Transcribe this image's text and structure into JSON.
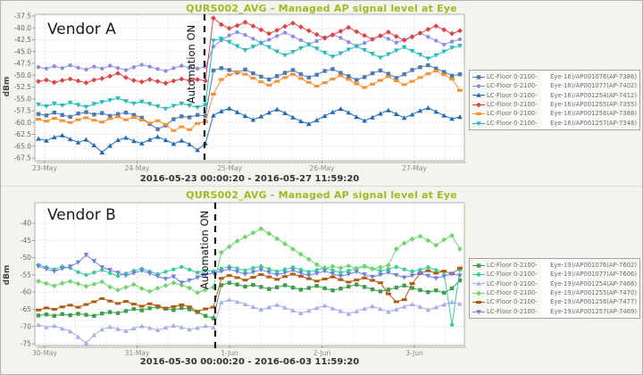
{
  "chart_data": [
    {
      "type": "line",
      "title": "QURS002_AVG - Managed AP signal level at Eye",
      "vendor": "Vendor A",
      "annotation": "Automation ON",
      "ylabel": "dBm",
      "xlabel": "2016-05-23 00:00:20 - 2016-05-27 11:59:20",
      "x_ticks": [
        "23-May",
        "24-May",
        "25-May",
        "26-May",
        "27-May"
      ],
      "y_ticks": [
        "-37.5",
        "-40.0",
        "-42.5",
        "-45.0",
        "-47.5",
        "-50.0",
        "-52.5",
        "-55.0",
        "-57.5",
        "-60.0",
        "-62.5",
        "-65.0",
        "-67.5"
      ],
      "ylim": [
        -68.5,
        -37.0
      ],
      "grid": true,
      "legend_position": "right",
      "automation_at_day": 1.73,
      "series": [
        {
          "label_left": "LC-Floor 0-2100-",
          "label_right": "Eye-16)/AP001076(AP-7386)",
          "color": "#4e79b2",
          "shape": "square",
          "values": [
            -58.2,
            -58.5,
            -57.9,
            -58.4,
            -58.8,
            -58.1,
            -57.8,
            -58.3,
            -58.0,
            -58.6,
            -58.2,
            -57.9,
            -58.4,
            -59.0,
            -60.3,
            -61.4,
            -60.6,
            -59.3,
            -58.7,
            -58.9,
            -58.4,
            -58.6,
            -49.0,
            -48.5,
            -48.9,
            -49.4,
            -48.8,
            -49.6,
            -50.3,
            -50.9,
            -50.2,
            -49.5,
            -48.9,
            -49.8,
            -50.5,
            -49.9,
            -49.1,
            -48.7,
            -49.5,
            -50.2,
            -51.0,
            -50.4,
            -49.6,
            -49.0,
            -49.7,
            -50.6,
            -49.8,
            -48.9,
            -48.3,
            -47.9,
            -48.6,
            -49.3,
            -50.1,
            -49.8
          ]
        },
        {
          "label_left": "LC-Floor 0-2100-",
          "label_right": "Eye-16)/AP001077(AP-7402)",
          "color": "#8b8fe0",
          "shape": "circle",
          "values": [
            -48.3,
            -48.6,
            -48.1,
            -48.5,
            -47.9,
            -48.4,
            -48.8,
            -48.2,
            -48.6,
            -48.0,
            -48.5,
            -48.9,
            -48.3,
            -47.8,
            -48.2,
            -48.7,
            -49.1,
            -48.5,
            -48.0,
            -48.4,
            -48.6,
            -48.2,
            -44.0,
            -42.6,
            -41.6,
            -40.9,
            -41.5,
            -42.3,
            -43.1,
            -42.5,
            -41.7,
            -41.0,
            -41.8,
            -42.6,
            -43.4,
            -42.8,
            -42.0,
            -41.4,
            -42.1,
            -43.0,
            -43.8,
            -43.2,
            -42.4,
            -41.6,
            -42.3,
            -43.1,
            -42.5,
            -41.8,
            -41.1,
            -41.9,
            -42.7,
            -43.5,
            -42.9,
            -42.4
          ]
        },
        {
          "label_left": "LC-Floor 0-2100-",
          "label_right": "Eye-16)/AP001254(AP-7412)",
          "color": "#1f6cb4",
          "shape": "triangle-up",
          "values": [
            -63.4,
            -63.8,
            -63.1,
            -62.7,
            -63.5,
            -64.2,
            -63.6,
            -64.8,
            -66.3,
            -64.9,
            -63.7,
            -63.2,
            -63.9,
            -64.4,
            -63.6,
            -63.0,
            -63.7,
            -64.5,
            -63.8,
            -64.6,
            -65.8,
            -64.4,
            -58.5,
            -57.6,
            -57.0,
            -57.8,
            -58.6,
            -59.4,
            -58.7,
            -57.9,
            -57.2,
            -58.0,
            -58.9,
            -59.7,
            -60.3,
            -59.5,
            -58.6,
            -57.8,
            -57.1,
            -57.9,
            -58.8,
            -59.6,
            -58.9,
            -58.1,
            -57.4,
            -58.2,
            -59.0,
            -58.3,
            -57.5,
            -56.9,
            -57.7,
            -58.5,
            -59.2,
            -58.8
          ]
        },
        {
          "label_left": "LC-Floor 0-2100-",
          "label_right": "Eye-16)/AP001255(AP-7355)",
          "color": "#e04345",
          "shape": "diamond",
          "values": [
            -51.3,
            -51.0,
            -51.5,
            -51.1,
            -50.8,
            -51.2,
            -51.6,
            -51.0,
            -50.7,
            -50.2,
            -49.6,
            -50.5,
            -51.1,
            -51.4,
            -50.9,
            -51.3,
            -51.7,
            -51.2,
            -50.8,
            -51.1,
            -50.9,
            -51.2,
            -37.9,
            -39.3,
            -40.1,
            -39.5,
            -38.8,
            -39.6,
            -40.4,
            -41.2,
            -40.5,
            -39.7,
            -39.0,
            -39.8,
            -40.6,
            -41.4,
            -42.2,
            -41.5,
            -40.7,
            -39.9,
            -40.8,
            -41.6,
            -42.4,
            -41.7,
            -40.9,
            -41.8,
            -42.6,
            -41.9,
            -41.1,
            -40.3,
            -39.6,
            -40.4,
            -41.2,
            -40.6
          ]
        },
        {
          "label_left": "LC-Floor 0-2100-",
          "label_right": "Eye-16)/AP001256(AP-7388)",
          "color": "#f79230",
          "shape": "hrect",
          "values": [
            -59.3,
            -59.7,
            -59.1,
            -59.6,
            -60.0,
            -59.4,
            -59.0,
            -59.5,
            -59.9,
            -59.2,
            -58.8,
            -59.4,
            -58.9,
            -59.5,
            -60.1,
            -59.6,
            -60.4,
            -61.7,
            -60.9,
            -61.5,
            -60.2,
            -59.8,
            -54.0,
            -50.9,
            -49.9,
            -49.3,
            -49.8,
            -50.6,
            -51.4,
            -52.1,
            -51.3,
            -50.5,
            -49.8,
            -50.7,
            -51.5,
            -52.3,
            -51.6,
            -50.8,
            -50.1,
            -50.9,
            -51.8,
            -52.6,
            -51.9,
            -51.1,
            -50.3,
            -51.2,
            -52.0,
            -51.3,
            -50.5,
            -49.7,
            -49.1,
            -49.9,
            -50.8,
            -53.2
          ]
        },
        {
          "label_left": "LC-Floor 0-2100-",
          "label_right": "Eye-16)/AP001257(AP-7348)",
          "color": "#1fbdb8",
          "shape": "triangle-down",
          "values": [
            -56.2,
            -56.6,
            -56.0,
            -56.4,
            -55.8,
            -56.3,
            -56.7,
            -56.1,
            -55.7,
            -55.3,
            -54.9,
            -55.5,
            -56.0,
            -55.6,
            -56.1,
            -56.6,
            -57.1,
            -56.5,
            -56.0,
            -56.4,
            -56.8,
            -56.3,
            -42.7,
            -42.3,
            -43.0,
            -43.9,
            -44.7,
            -44.0,
            -43.3,
            -44.1,
            -45.0,
            -45.8,
            -45.1,
            -44.3,
            -43.6,
            -44.4,
            -45.3,
            -46.1,
            -45.4,
            -44.6,
            -43.9,
            -44.7,
            -45.5,
            -46.3,
            -45.6,
            -44.8,
            -44.1,
            -44.9,
            -45.7,
            -46.5,
            -45.8,
            -45.0,
            -44.2,
            -43.8
          ]
        }
      ]
    },
    {
      "type": "line",
      "title": "QURS002_AVG - Managed AP signal level at Eye",
      "vendor": "Vendor B",
      "annotation": "Automation ON",
      "ylabel": "dBm",
      "xlabel": "2016-05-30 00:00:20 - 2016-06-03 11:59:20",
      "x_ticks": [
        "30-May",
        "31-May",
        "1-Jun",
        "2-Jun",
        "3-Jun"
      ],
      "y_ticks": [
        "-40",
        "-45",
        "-50",
        "-55",
        "-60",
        "-65",
        "-70",
        "-75"
      ],
      "ylim": [
        -75.8,
        -34.0
      ],
      "grid": true,
      "legend_position": "right",
      "automation_at_day": 1.85,
      "series": [
        {
          "label_left": "LC-Floor 0-2100-",
          "label_right": "Eye-19)/AP001076(AP-7602)",
          "color": "#3f9e4d",
          "shape": "square",
          "values": [
            -66.8,
            -66.5,
            -66.9,
            -66.4,
            -66.7,
            -66.3,
            -66.6,
            -66.9,
            -66.2,
            -65.8,
            -66.1,
            -65.5,
            -64.9,
            -65.3,
            -64.7,
            -64.3,
            -64.8,
            -65.2,
            -64.6,
            -65.0,
            -65.8,
            -66.9,
            -67.6,
            -58.0,
            -57.3,
            -57.8,
            -58.4,
            -57.9,
            -58.5,
            -59.1,
            -58.6,
            -58.0,
            -58.7,
            -59.3,
            -58.8,
            -58.2,
            -58.9,
            -59.5,
            -59.0,
            -58.4,
            -57.8,
            -58.5,
            -59.2,
            -59.8,
            -59.3,
            -58.7,
            -58.1,
            -58.8,
            -59.4,
            -60.0,
            -59.5,
            -60.2,
            -58.9,
            -56.6
          ]
        },
        {
          "label_left": "LC-Floor 0-2100-",
          "label_right": "Eye-19)/AP001077(AP-7606)",
          "color": "#36cf9c",
          "shape": "circle",
          "values": [
            -52.1,
            -52.8,
            -53.4,
            -52.6,
            -53.0,
            -54.2,
            -55.0,
            -54.3,
            -53.6,
            -54.5,
            -55.3,
            -54.6,
            -53.8,
            -53.2,
            -54.0,
            -54.8,
            -54.1,
            -53.4,
            -52.7,
            -53.5,
            -54.3,
            -53.7,
            -54.0,
            -53.2,
            -52.6,
            -53.1,
            -53.7,
            -53.0,
            -52.5,
            -53.3,
            -54.0,
            -53.4,
            -52.8,
            -53.5,
            -54.1,
            -53.6,
            -52.9,
            -53.7,
            -54.3,
            -53.8,
            -53.1,
            -52.4,
            -53.2,
            -53.9,
            -53.3,
            -52.7,
            -53.4,
            -54.0,
            -53.5,
            -52.8,
            -53.6,
            -54.2,
            -69.5,
            -53.5
          ]
        },
        {
          "label_left": "LC-Floor 0-2100-",
          "label_right": "Eye-19)/AP001254(AP-7468)",
          "color": "#a9aee9",
          "shape": "triangle-up",
          "values": [
            -69.5,
            -70.2,
            -69.8,
            -70.6,
            -71.4,
            -73.0,
            -74.8,
            -72.5,
            -70.8,
            -70.1,
            -70.7,
            -71.3,
            -70.5,
            -69.9,
            -70.4,
            -71.0,
            -70.3,
            -69.7,
            -70.2,
            -70.8,
            -70.4,
            -69.8,
            -70.3,
            -63.0,
            -62.2,
            -62.8,
            -63.5,
            -64.3,
            -65.1,
            -64.4,
            -63.7,
            -64.5,
            -65.3,
            -66.1,
            -65.4,
            -64.6,
            -63.9,
            -64.7,
            -65.5,
            -66.3,
            -65.6,
            -64.8,
            -64.1,
            -64.9,
            -65.7,
            -65.0,
            -64.2,
            -63.5,
            -64.3,
            -65.1,
            -64.4,
            -63.6,
            -62.9,
            -63.4
          ]
        },
        {
          "label_left": "LC-Floor 0-2100-",
          "label_right": "Eye-19)/AP001255(AP-7470)",
          "color": "#6fd66f",
          "shape": "diamond",
          "values": [
            -56.8,
            -57.5,
            -58.2,
            -57.4,
            -56.9,
            -57.6,
            -58.3,
            -57.7,
            -57.0,
            -58.5,
            -59.4,
            -58.6,
            -57.8,
            -59.0,
            -59.8,
            -58.9,
            -58.1,
            -57.3,
            -58.0,
            -58.8,
            -60.2,
            -59.3,
            -58.6,
            -48.5,
            -46.8,
            -45.2,
            -44.0,
            -42.8,
            -41.6,
            -43.0,
            -44.5,
            -46.0,
            -47.5,
            -49.0,
            -50.5,
            -52.0,
            -53.2,
            -52.5,
            -53.0,
            -52.4,
            -53.1,
            -52.6,
            -53.3,
            -52.8,
            -52.2,
            -47.5,
            -45.8,
            -44.6,
            -43.8,
            -45.0,
            -46.4,
            -44.8,
            -43.6,
            -47.5
          ]
        },
        {
          "label_left": "LC-Floor 0-2100-",
          "label_right": "Eye-19)/AP001256(AP-7477)",
          "color": "#b35a0f",
          "shape": "hrect",
          "values": [
            -65.2,
            -64.6,
            -65.0,
            -64.3,
            -63.8,
            -64.4,
            -63.6,
            -62.8,
            -61.9,
            -62.6,
            -63.3,
            -62.7,
            -63.5,
            -64.1,
            -63.4,
            -64.0,
            -64.7,
            -64.2,
            -63.7,
            -64.3,
            -65.6,
            -64.9,
            -64.4,
            -56.0,
            -55.2,
            -55.8,
            -56.5,
            -55.7,
            -54.9,
            -55.6,
            -56.3,
            -55.5,
            -54.8,
            -55.4,
            -56.1,
            -56.8,
            -56.2,
            -55.6,
            -56.4,
            -57.1,
            -56.5,
            -55.9,
            -56.6,
            -57.3,
            -60.5,
            -62.8,
            -62.2,
            -57.5,
            -54.6,
            -53.8,
            -54.5,
            -53.9,
            -54.7,
            -53.0
          ]
        },
        {
          "label_left": "LC-Floor 0-2100-",
          "label_right": "Eye-19)/AP001257(AP-7469)",
          "color": "#6f7fe0",
          "shape": "triangle-down",
          "values": [
            -52.5,
            -53.3,
            -54.0,
            -53.2,
            -52.6,
            -51.4,
            -49.2,
            -51.0,
            -52.8,
            -53.6,
            -54.4,
            -55.2,
            -54.5,
            -53.8,
            -54.6,
            -55.4,
            -56.2,
            -55.5,
            -57.3,
            -56.6,
            -55.8,
            -55.0,
            -54.4,
            -54.0,
            -53.3,
            -54.1,
            -54.8,
            -54.2,
            -53.5,
            -54.3,
            -55.0,
            -54.4,
            -53.7,
            -54.5,
            -55.2,
            -54.6,
            -53.9,
            -54.7,
            -55.4,
            -54.8,
            -54.1,
            -54.9,
            -55.6,
            -55.0,
            -54.3,
            -55.1,
            -55.8,
            -55.2,
            -54.5,
            -55.3,
            -56.0,
            -55.4,
            -54.7,
            -55.2
          ]
        }
      ]
    }
  ],
  "colors": {
    "title": "#9cbc20",
    "automation_line": "#151515",
    "background": "#f4f4ee"
  }
}
